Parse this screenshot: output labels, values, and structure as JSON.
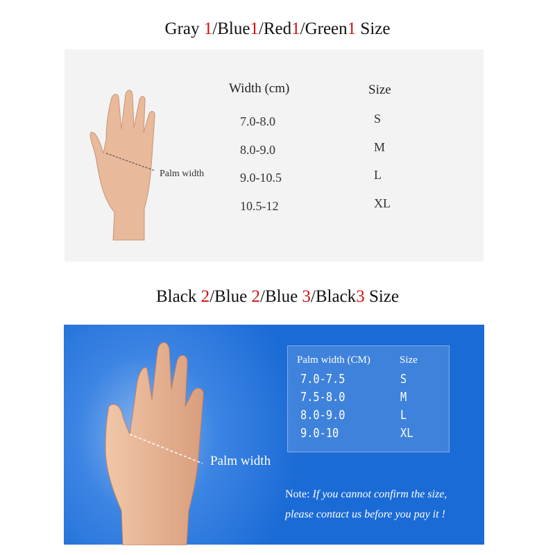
{
  "section1": {
    "title_parts": [
      {
        "text": "Gray ",
        "red": false
      },
      {
        "text": "1",
        "red": true
      },
      {
        "text": "/Blue",
        "red": false
      },
      {
        "text": "1",
        "red": true
      },
      {
        "text": "/Red",
        "red": false
      },
      {
        "text": "1",
        "red": true
      },
      {
        "text": "/Green",
        "red": false
      },
      {
        "text": "1",
        "red": true
      },
      {
        "text": " Size",
        "red": false
      }
    ],
    "header_width": "Width (cm)",
    "header_size": "Size",
    "palm_label": "Palm width",
    "rows": [
      {
        "width": "7.0-8.0",
        "size": "S"
      },
      {
        "width": "8.0-9.0",
        "size": "M"
      },
      {
        "width": "9.0-10.5",
        "size": "L"
      },
      {
        "width": "10.5-12",
        "size": "XL"
      }
    ]
  },
  "section2": {
    "title_parts": [
      {
        "text": "Black ",
        "red": false
      },
      {
        "text": "2",
        "red": true
      },
      {
        "text": "/Blue ",
        "red": false
      },
      {
        "text": "2",
        "red": true
      },
      {
        "text": "/Blue ",
        "red": false
      },
      {
        "text": "3",
        "red": true
      },
      {
        "text": "/Black",
        "red": false
      },
      {
        "text": "3",
        "red": true
      },
      {
        "text": " Size",
        "red": false
      }
    ],
    "header_width": "Palm width (CM)",
    "header_size": "Size",
    "palm_label": "Palm width",
    "rows": [
      {
        "width": "7.0-7.5",
        "size": "S"
      },
      {
        "width": "7.5-8.0",
        "size": "M"
      },
      {
        "width": "8.0-9.0",
        "size": "L"
      },
      {
        "width": "9.0-10",
        "size": "XL"
      }
    ],
    "note_label": "Note:",
    "note_line1": "If you cannot confirm the size,",
    "note_line2": "please contact us before you pay it !"
  },
  "colors": {
    "accent_red": "#d01010",
    "panel_blue": "#1b6bd6",
    "panel_gray": "#f3f3f3"
  }
}
